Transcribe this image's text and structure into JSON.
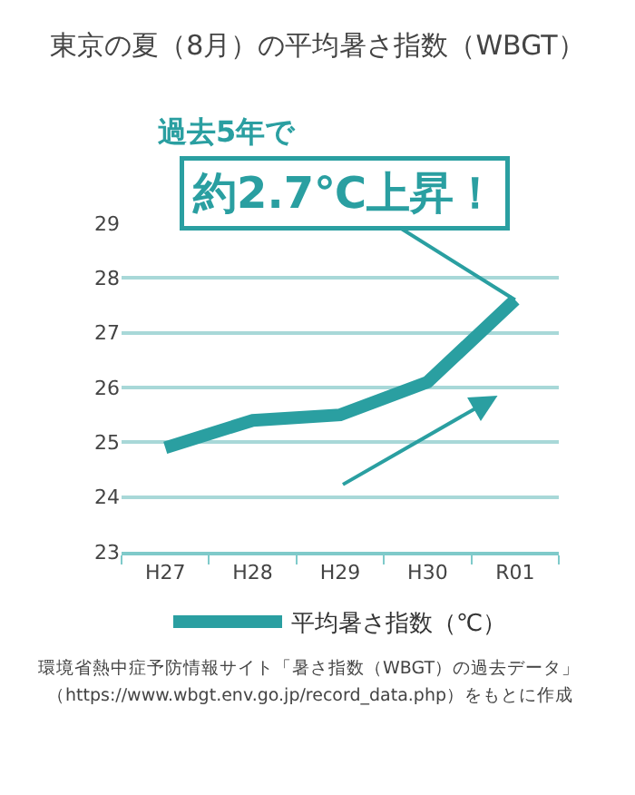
{
  "chart_data": {
    "type": "line",
    "title": "東京の夏（8月）の平均暑さ指数（WBGT）",
    "categories": [
      "H27",
      "H28",
      "H29",
      "H30",
      "R01"
    ],
    "series": [
      {
        "name": "平均暑さ指数（℃）",
        "color": "#2a9fa1",
        "values": [
          24.9,
          25.4,
          25.5,
          26.1,
          27.6
        ]
      }
    ],
    "ylim": [
      23,
      29
    ],
    "yticks": [
      23,
      24,
      25,
      26,
      27,
      28,
      29
    ],
    "grid": "y",
    "legend": "bottom",
    "marker": "none",
    "line_style": "solid",
    "annotations": [
      "過去5年で",
      {
        "text": "約2.7℃上昇！",
        "x": "R01",
        "y": 27.6
      },
      "環境省熱中症予防情報サイト「暑さ指数（WBGT）の過去データ」",
      "（https://www.wbgt.env.go.jp/record_data.php）をもとに作成"
    ]
  }
}
